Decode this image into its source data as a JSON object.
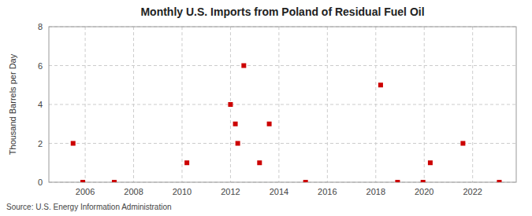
{
  "chart_data": {
    "type": "scatter",
    "title": "Monthly U.S. Imports from Poland of Residual Fuel Oil",
    "ylabel": "Thousand Barrels per Day",
    "source": "Source: U.S. Energy Information Administration",
    "x": [
      2005.5,
      2005.9,
      2007.2,
      2010.2,
      2012.0,
      2012.2,
      2012.3,
      2012.55,
      2013.2,
      2013.6,
      2015.1,
      2018.2,
      2018.9,
      2019.95,
      2020.25,
      2021.6,
      2023.1
    ],
    "values": [
      2,
      0,
      0,
      1,
      4,
      3,
      2,
      6,
      1,
      3,
      0,
      5,
      0,
      0,
      1,
      2,
      0
    ],
    "color": "#cc0000",
    "marker": "square",
    "xlim": [
      2004.5,
      2023.8
    ],
    "ylim": [
      0,
      8
    ],
    "xticks": [
      2006,
      2008,
      2010,
      2012,
      2014,
      2016,
      2018,
      2020,
      2022
    ],
    "yticks": [
      0,
      2,
      4,
      6,
      8
    ],
    "grid": true
  }
}
